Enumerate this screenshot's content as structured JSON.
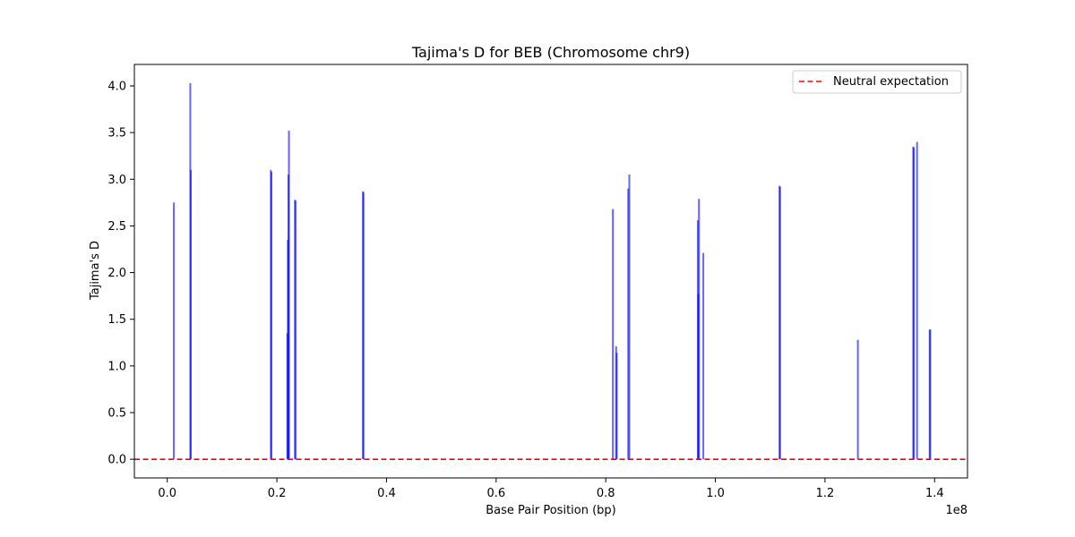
{
  "chart_data": {
    "type": "bar",
    "title": "Tajima's D for BEB (Chromosome chr9)",
    "xlabel": "Base Pair Position (bp)",
    "ylabel": "Tajima's D",
    "x_offset_label": "1e8",
    "x_scale_factor": 100000000,
    "xlim": [
      -6000000,
      146000000
    ],
    "ylim": [
      -0.2,
      4.23
    ],
    "x_ticks": [
      0,
      20000000,
      40000000,
      60000000,
      80000000,
      100000000,
      120000000,
      140000000
    ],
    "x_tick_labels": [
      "0.0",
      "0.2",
      "0.4",
      "0.6",
      "0.8",
      "1.0",
      "1.2",
      "1.4"
    ],
    "y_ticks": [
      0.0,
      0.5,
      1.0,
      1.5,
      2.0,
      2.5,
      3.0,
      3.5,
      4.0
    ],
    "y_tick_labels": [
      "0.0",
      "0.5",
      "1.0",
      "1.5",
      "2.0",
      "2.5",
      "3.0",
      "3.5",
      "4.0"
    ],
    "grid": false,
    "legend_position": "top-right",
    "series": [
      {
        "color": "#0000ff",
        "x": [
          1200000,
          4200000,
          4300000,
          18900000,
          19000000,
          21900000,
          22000000,
          22100000,
          22200000,
          23300000,
          23400000,
          35700000,
          35800000,
          81300000,
          81900000,
          82000000,
          84100000,
          84300000,
          96800000,
          96900000,
          97000000,
          97800000,
          111700000,
          111800000,
          126000000,
          136100000,
          136200000,
          136800000,
          139100000,
          139200000
        ],
        "values": [
          2.75,
          4.03,
          3.1,
          3.1,
          3.08,
          1.35,
          2.35,
          3.05,
          3.52,
          2.78,
          2.77,
          2.87,
          2.86,
          2.68,
          1.21,
          1.14,
          2.9,
          3.05,
          2.56,
          1.77,
          2.79,
          2.21,
          2.93,
          2.92,
          1.28,
          3.35,
          3.34,
          3.4,
          1.39,
          1.39
        ]
      }
    ],
    "reference_line": {
      "label": "Neutral expectation",
      "value": 0.0,
      "color": "#ff0000",
      "style": "dashed"
    }
  }
}
